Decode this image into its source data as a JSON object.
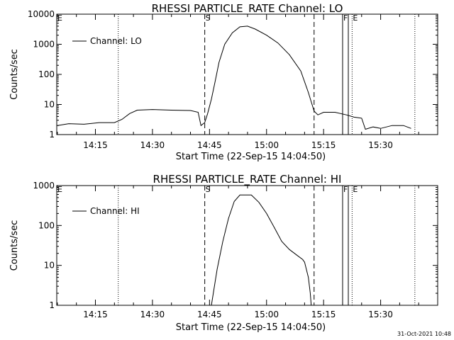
{
  "footer": {
    "date_stamp": "31-Oct-2021 10:48"
  },
  "chart_data": [
    {
      "type": "line",
      "title": "RHESSI PARTICLE_RATE Channel: LO",
      "xlabel": "Start Time (22-Sep-15 14:04:50)",
      "ylabel": "Counts/sec",
      "xlim": [
        "14:04:50",
        "15:45:00"
      ],
      "ylim": [
        1,
        10000
      ],
      "yscale": "log",
      "x_ticks": [
        "14:15",
        "14:30",
        "14:45",
        "15:00",
        "15:15",
        "15:30"
      ],
      "y_ticks": [
        "1",
        "10",
        "100",
        "1000",
        "10000"
      ],
      "legend": {
        "position": "top-left",
        "entries": [
          "Channel: LO"
        ]
      },
      "markers": [
        {
          "time": "14:21:00",
          "label": "",
          "style": "dotted"
        },
        {
          "time": "14:43:45",
          "label": "S",
          "style": "dashed"
        },
        {
          "time": "15:12:30",
          "label": "",
          "style": "dashed"
        },
        {
          "time": "15:20:00",
          "label": "F",
          "style": "solid"
        },
        {
          "time": "15:21:30",
          "label": "",
          "style": "solid"
        },
        {
          "time": "15:22:30",
          "label": "E",
          "style": "dotted"
        },
        {
          "time": "15:39:00",
          "label": "",
          "style": "dotted"
        },
        {
          "time": "14:04:50",
          "label": "E",
          "style": "none"
        }
      ],
      "series": [
        {
          "values": [
            [
              "14:05:00",
              2
            ],
            [
              "14:08:00",
              2.3
            ],
            [
              "14:12:00",
              2.2
            ],
            [
              "14:16:00",
              2.5
            ],
            [
              "14:20:00",
              2.5
            ],
            [
              "14:22:00",
              3.2
            ],
            [
              "14:24:00",
              5
            ],
            [
              "14:26:00",
              6.5
            ],
            [
              "14:30:00",
              6.8
            ],
            [
              "14:35:00",
              6.5
            ],
            [
              "14:40:00",
              6.3
            ],
            [
              "14:42:00",
              5.5
            ],
            [
              "14:42:45",
              2
            ],
            [
              "14:43:45",
              2.5
            ],
            [
              "14:44:30",
              5
            ],
            [
              "14:45:30",
              15
            ],
            [
              "14:46:30",
              60
            ],
            [
              "14:47:30",
              250
            ],
            [
              "14:49:00",
              1000
            ],
            [
              "14:51:00",
              2400
            ],
            [
              "14:53:00",
              3800
            ],
            [
              "14:55:00",
              4000
            ],
            [
              "14:57:00",
              3200
            ],
            [
              "15:00:00",
              2000
            ],
            [
              "15:03:00",
              1100
            ],
            [
              "15:06:00",
              450
            ],
            [
              "15:09:00",
              130
            ],
            [
              "15:11:00",
              25
            ],
            [
              "15:12:30",
              6
            ],
            [
              "15:13:30",
              4.5
            ],
            [
              "15:15:00",
              5.5
            ],
            [
              "15:18:00",
              5.5
            ],
            [
              "15:21:00",
              4.5
            ],
            [
              "15:23:00",
              3.8
            ],
            [
              "15:25:00",
              3.5
            ],
            [
              "15:26:00",
              1.5
            ],
            [
              "15:28:00",
              1.8
            ],
            [
              "15:30:00",
              1.6
            ],
            [
              "15:33:00",
              2
            ],
            [
              "15:36:00",
              2
            ],
            [
              "15:38:00",
              1.6
            ]
          ]
        }
      ]
    },
    {
      "type": "line",
      "title": "RHESSI PARTICLE_RATE Channel: HI",
      "xlabel": "Start Time (22-Sep-15 14:04:50)",
      "ylabel": "Counts/sec",
      "xlim": [
        "14:04:50",
        "15:45:00"
      ],
      "ylim": [
        1,
        1000
      ],
      "yscale": "log",
      "x_ticks": [
        "14:15",
        "14:30",
        "14:45",
        "15:00",
        "15:15",
        "15:30"
      ],
      "y_ticks": [
        "1",
        "10",
        "100",
        "1000"
      ],
      "legend": {
        "position": "top-left",
        "entries": [
          "Channel: HI"
        ]
      },
      "markers": [
        {
          "time": "14:21:00",
          "label": "",
          "style": "dotted"
        },
        {
          "time": "14:43:45",
          "label": "S",
          "style": "dashed"
        },
        {
          "time": "15:12:30",
          "label": "",
          "style": "dashed"
        },
        {
          "time": "15:20:00",
          "label": "F",
          "style": "solid"
        },
        {
          "time": "15:21:30",
          "label": "",
          "style": "solid"
        },
        {
          "time": "15:22:30",
          "label": "E",
          "style": "dotted"
        },
        {
          "time": "15:39:00",
          "label": "",
          "style": "dotted"
        },
        {
          "time": "14:04:50",
          "label": "E",
          "style": "none"
        }
      ],
      "series": [
        {
          "values": [
            [
              "14:45:30",
              1
            ],
            [
              "14:46:00",
              2
            ],
            [
              "14:47:00",
              8
            ],
            [
              "14:48:30",
              40
            ],
            [
              "14:50:00",
              150
            ],
            [
              "14:51:30",
              400
            ],
            [
              "14:53:00",
              580
            ],
            [
              "14:56:00",
              580
            ],
            [
              "14:58:00",
              380
            ],
            [
              "15:00:00",
              200
            ],
            [
              "15:02:00",
              90
            ],
            [
              "15:04:00",
              40
            ],
            [
              "15:06:00",
              25
            ],
            [
              "15:08:00",
              18
            ],
            [
              "15:09:30",
              14
            ],
            [
              "15:10:00",
              12
            ],
            [
              "15:11:00",
              5
            ],
            [
              "15:11:30",
              2
            ],
            [
              "15:11:45",
              1
            ]
          ]
        }
      ]
    }
  ]
}
